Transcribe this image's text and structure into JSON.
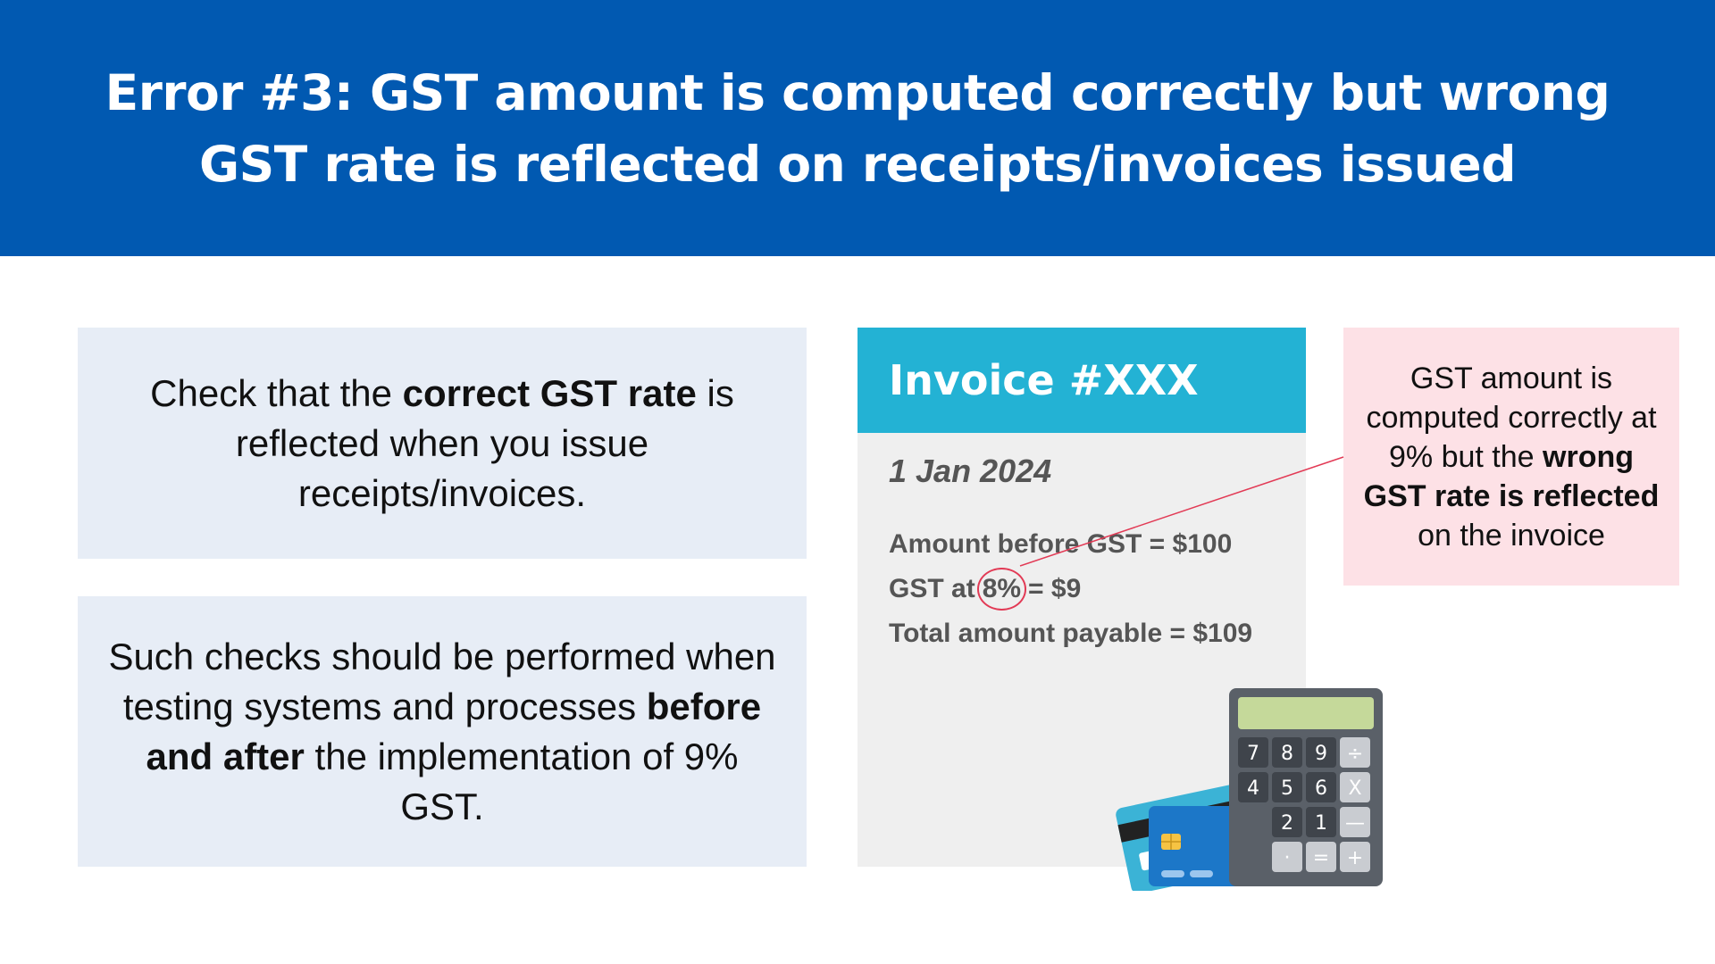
{
  "header": {
    "title": "Error #3: GST amount is computed correctly but wrong GST rate is reflected on receipts/invoices issued"
  },
  "panel_check": {
    "pre": "Check that the ",
    "bold": "correct GST rate",
    "post": " is reflected when you issue receipts/invoices."
  },
  "panel_testing": {
    "pre": "Such checks should be performed when testing systems and processes ",
    "bold": "before and after",
    "post": " the implementation of 9% GST."
  },
  "invoice": {
    "title": "Invoice #XXX",
    "date": "1 Jan 2024",
    "line1": "Amount before GST = $100",
    "line2_pre": "GST at",
    "line2_rate": "8%",
    "line2_post": "= $9",
    "line3": "Total amount payable = $109"
  },
  "note": {
    "pre": "GST amount is computed correctly at 9% but the ",
    "bold": "wrong GST rate is reflected",
    "post": " on the invoice"
  },
  "calculator_keys": [
    "7",
    "8",
    "9",
    "÷",
    "4",
    "5",
    "6",
    "X",
    "2",
    "1",
    "—",
    "·",
    "=",
    "+"
  ],
  "colors": {
    "header_bg": "#0159b1",
    "panel_bg": "#e7edf6",
    "invoice_head": "#23b2d4",
    "invoice_body": "#efefef",
    "note_bg": "#fde1e6",
    "highlight_ring": "#e23a55"
  }
}
